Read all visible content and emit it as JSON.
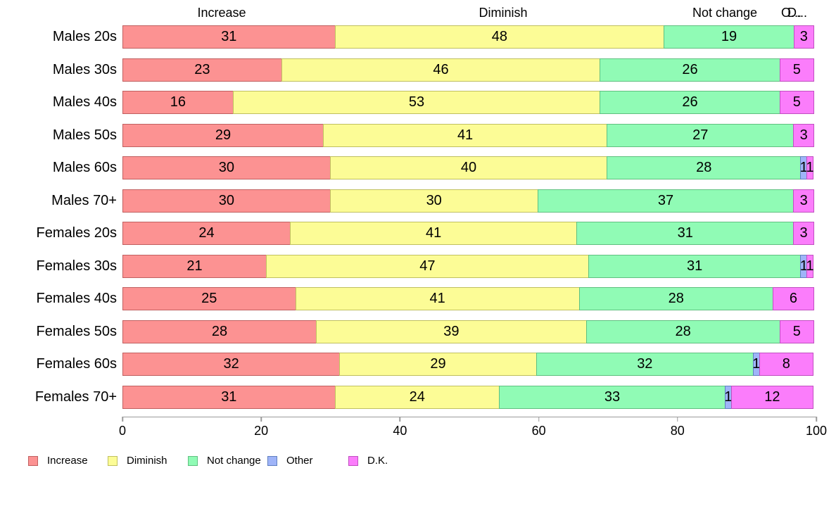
{
  "chart_data": {
    "type": "bar",
    "orientation": "horizontal",
    "stacked": true,
    "title": "",
    "xlabel": "",
    "ylabel": "",
    "grid": false,
    "legend_position": "bottom",
    "categories": [
      "Males 20s",
      "Males 30s",
      "Males 40s",
      "Males 50s",
      "Males 60s",
      "Males 70+",
      "Females 20s",
      "Females 30s",
      "Females 40s",
      "Females 50s",
      "Females 60s",
      "Females 70+"
    ],
    "series": [
      {
        "name": "Increase",
        "color": "#FC9292",
        "border_color": "#c06060",
        "values": [
          31,
          23,
          16,
          29,
          30,
          30,
          24,
          21,
          25,
          28,
          32,
          31
        ]
      },
      {
        "name": "Diminish",
        "color": "#FCFC96",
        "border_color": "#c0c060",
        "values": [
          48,
          46,
          53,
          41,
          40,
          30,
          41,
          47,
          41,
          39,
          29,
          24
        ]
      },
      {
        "name": "Not change",
        "color": "#90FBB5",
        "border_color": "#60c080",
        "values": [
          19,
          26,
          26,
          27,
          28,
          37,
          31,
          31,
          28,
          28,
          32,
          33
        ]
      },
      {
        "name": "Other",
        "color": "#9FB4F8",
        "border_color": "#6080c0",
        "values": [
          0,
          0,
          0,
          0,
          1,
          0,
          0,
          1,
          0,
          0,
          1,
          1
        ]
      },
      {
        "name": "D.K.",
        "color": "#FB7DFB",
        "border_color": "#c050c0",
        "values": [
          3,
          5,
          5,
          3,
          1,
          3,
          3,
          1,
          6,
          5,
          8,
          12
        ]
      }
    ],
    "column_headers": [
      "Increase",
      "Diminish",
      "Not change",
      "O...",
      "D..."
    ],
    "x_axis": {
      "min": 0,
      "max": 100,
      "ticks": [
        0,
        20,
        40,
        60,
        80,
        100
      ]
    },
    "legend": [
      "Increase",
      "Diminish",
      "Not change",
      "Other",
      "D.K."
    ]
  }
}
